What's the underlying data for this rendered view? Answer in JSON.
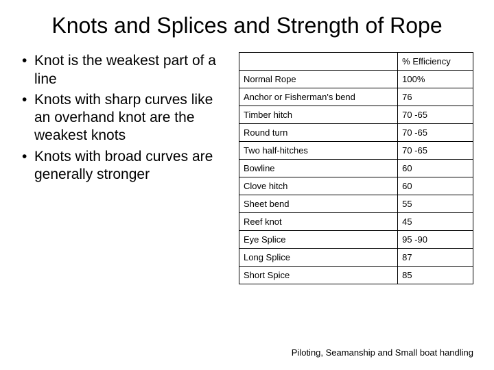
{
  "title": "Knots and Splices and Strength of Rope",
  "bullets": [
    "Knot is the weakest part of a line",
    "Knots with sharp curves like an overhand knot are the weakest knots",
    "Knots with broad curves are generally stronger"
  ],
  "table": {
    "header_blank": "",
    "header_eff": "% Efficiency",
    "rows": [
      {
        "name": "Normal Rope",
        "eff": "100%"
      },
      {
        "name": "Anchor or Fisherman's bend",
        "eff": "76"
      },
      {
        "name": "Timber hitch",
        "eff": "70 -65"
      },
      {
        "name": "Round turn",
        "eff": "70 -65"
      },
      {
        "name": "Two half-hitches",
        "eff": "70 -65"
      },
      {
        "name": "Bowline",
        "eff": "60"
      },
      {
        "name": "Clove hitch",
        "eff": "60"
      },
      {
        "name": "Sheet bend",
        "eff": "55"
      },
      {
        "name": "Reef knot",
        "eff": "45"
      },
      {
        "name": "Eye Splice",
        "eff": "95 -90"
      },
      {
        "name": "Long Splice",
        "eff": "87"
      },
      {
        "name": "Short Spice",
        "eff": "85"
      }
    ]
  },
  "footer": "Piloting, Seamanship and Small boat handling"
}
